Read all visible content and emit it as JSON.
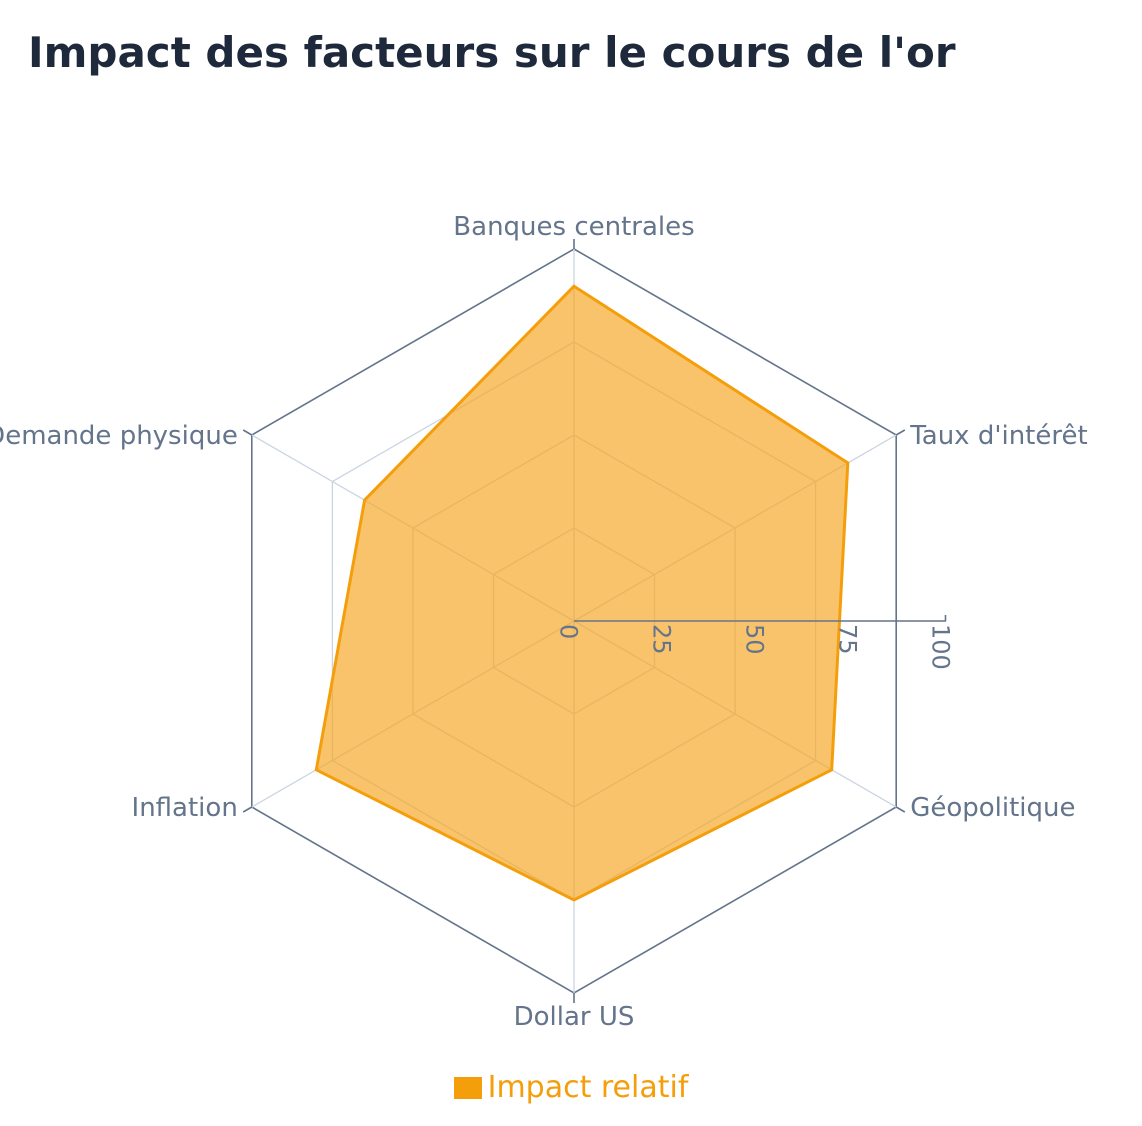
{
  "title": "Impact des facteurs sur le cours de l'or",
  "chart_data": {
    "type": "radar",
    "title": "Impact des facteurs sur le cours de l'or",
    "categories": [
      "Banques centrales",
      "Taux d'intérêt",
      "Géopolitique",
      "Dollar US",
      "Inflation",
      "Demande physique"
    ],
    "series": [
      {
        "name": "Impact relatif",
        "values": [
          90,
          85,
          80,
          75,
          80,
          65
        ],
        "color": "#f59e0b"
      }
    ],
    "rlim": [
      0,
      100
    ],
    "ticks": [
      "0",
      "25",
      "50",
      "75",
      "100"
    ],
    "grid": true,
    "legend": "bottom"
  },
  "colors": {
    "fill": "#f5a623",
    "stroke": "#f59e0b",
    "grid_inner": "#cbd5e1",
    "grid_outer": "#64748b",
    "label": "#64748b"
  }
}
